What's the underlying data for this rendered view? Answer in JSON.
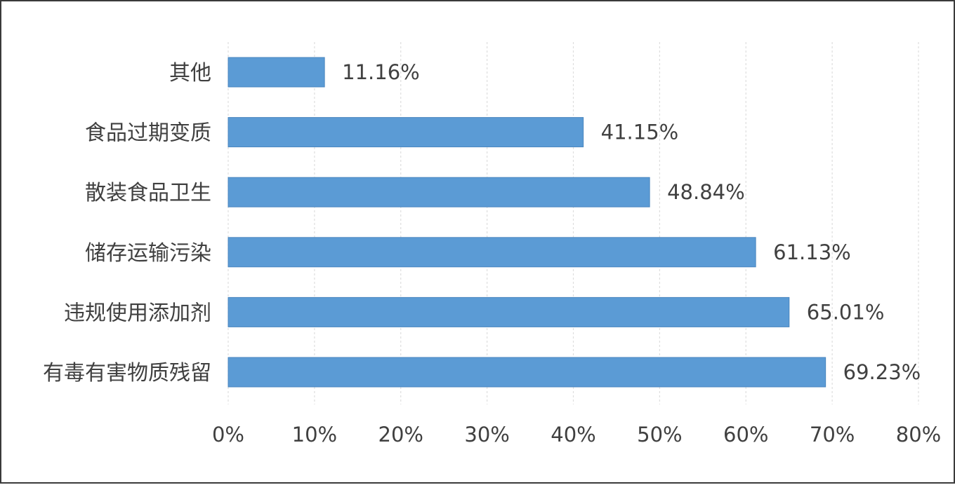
{
  "chart_data": {
    "type": "bar",
    "orientation": "horizontal",
    "title": "",
    "xlabel": "",
    "ylabel": "",
    "categories": [
      "其他",
      "食品过期变质",
      "散装食品卫生",
      "储存运输污染",
      "违规使用添加剂",
      "有毒有害物质残留"
    ],
    "values": [
      11.16,
      41.15,
      48.84,
      61.13,
      65.01,
      69.23
    ],
    "value_labels": [
      "11.16%",
      "41.15%",
      "48.84%",
      "61.13%",
      "65.01%",
      "69.23%"
    ],
    "xlim": [
      0,
      80
    ],
    "ticks": [
      0,
      10,
      20,
      30,
      40,
      50,
      60,
      70,
      80
    ],
    "tick_labels": [
      "0%",
      "10%",
      "20%",
      "30%",
      "40%",
      "50%",
      "60%",
      "70%",
      "80%"
    ],
    "grid": true,
    "legend": "none",
    "bar_color": "#5b9bd5"
  }
}
